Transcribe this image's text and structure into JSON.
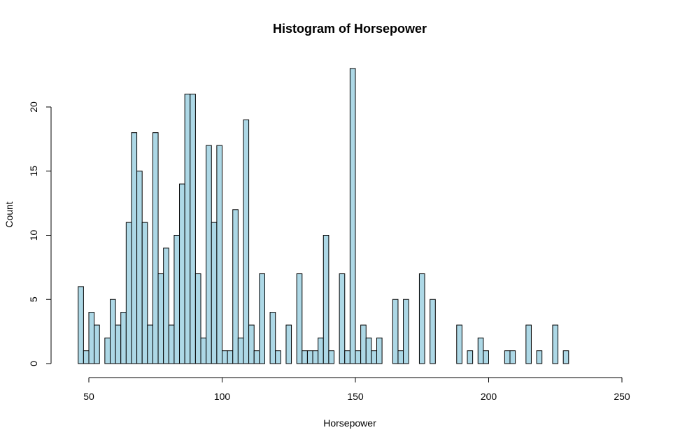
{
  "chart_data": {
    "type": "bar",
    "title": "Histogram of Horsepower",
    "xlabel": "Horsepower",
    "ylabel": "Count",
    "bin_width": 2,
    "bins": [
      {
        "x": 46,
        "count": 6
      },
      {
        "x": 48,
        "count": 1
      },
      {
        "x": 50,
        "count": 4
      },
      {
        "x": 52,
        "count": 3
      },
      {
        "x": 54,
        "count": 0
      },
      {
        "x": 56,
        "count": 2
      },
      {
        "x": 58,
        "count": 5
      },
      {
        "x": 60,
        "count": 3
      },
      {
        "x": 62,
        "count": 4
      },
      {
        "x": 64,
        "count": 11
      },
      {
        "x": 66,
        "count": 18
      },
      {
        "x": 68,
        "count": 15
      },
      {
        "x": 70,
        "count": 11
      },
      {
        "x": 72,
        "count": 3
      },
      {
        "x": 74,
        "count": 18
      },
      {
        "x": 76,
        "count": 7
      },
      {
        "x": 78,
        "count": 9
      },
      {
        "x": 80,
        "count": 3
      },
      {
        "x": 82,
        "count": 10
      },
      {
        "x": 84,
        "count": 14
      },
      {
        "x": 86,
        "count": 21
      },
      {
        "x": 88,
        "count": 21
      },
      {
        "x": 90,
        "count": 7
      },
      {
        "x": 92,
        "count": 2
      },
      {
        "x": 94,
        "count": 17
      },
      {
        "x": 96,
        "count": 11
      },
      {
        "x": 98,
        "count": 17
      },
      {
        "x": 100,
        "count": 1
      },
      {
        "x": 102,
        "count": 1
      },
      {
        "x": 104,
        "count": 12
      },
      {
        "x": 106,
        "count": 2
      },
      {
        "x": 108,
        "count": 19
      },
      {
        "x": 110,
        "count": 3
      },
      {
        "x": 112,
        "count": 1
      },
      {
        "x": 114,
        "count": 7
      },
      {
        "x": 116,
        "count": 0
      },
      {
        "x": 118,
        "count": 4
      },
      {
        "x": 120,
        "count": 1
      },
      {
        "x": 122,
        "count": 0
      },
      {
        "x": 124,
        "count": 3
      },
      {
        "x": 126,
        "count": 0
      },
      {
        "x": 128,
        "count": 7
      },
      {
        "x": 130,
        "count": 1
      },
      {
        "x": 132,
        "count": 1
      },
      {
        "x": 134,
        "count": 1
      },
      {
        "x": 136,
        "count": 2
      },
      {
        "x": 138,
        "count": 10
      },
      {
        "x": 140,
        "count": 1
      },
      {
        "x": 142,
        "count": 0
      },
      {
        "x": 144,
        "count": 7
      },
      {
        "x": 146,
        "count": 1
      },
      {
        "x": 148,
        "count": 23
      },
      {
        "x": 150,
        "count": 1
      },
      {
        "x": 152,
        "count": 3
      },
      {
        "x": 154,
        "count": 2
      },
      {
        "x": 156,
        "count": 1
      },
      {
        "x": 158,
        "count": 2
      },
      {
        "x": 160,
        "count": 0
      },
      {
        "x": 162,
        "count": 0
      },
      {
        "x": 164,
        "count": 5
      },
      {
        "x": 166,
        "count": 1
      },
      {
        "x": 168,
        "count": 5
      },
      {
        "x": 170,
        "count": 0
      },
      {
        "x": 172,
        "count": 0
      },
      {
        "x": 174,
        "count": 7
      },
      {
        "x": 176,
        "count": 0
      },
      {
        "x": 178,
        "count": 5
      },
      {
        "x": 180,
        "count": 0
      },
      {
        "x": 182,
        "count": 0
      },
      {
        "x": 184,
        "count": 0
      },
      {
        "x": 186,
        "count": 0
      },
      {
        "x": 188,
        "count": 3
      },
      {
        "x": 190,
        "count": 0
      },
      {
        "x": 192,
        "count": 1
      },
      {
        "x": 194,
        "count": 0
      },
      {
        "x": 196,
        "count": 2
      },
      {
        "x": 198,
        "count": 1
      },
      {
        "x": 200,
        "count": 0
      },
      {
        "x": 202,
        "count": 0
      },
      {
        "x": 204,
        "count": 0
      },
      {
        "x": 206,
        "count": 1
      },
      {
        "x": 208,
        "count": 1
      },
      {
        "x": 210,
        "count": 0
      },
      {
        "x": 212,
        "count": 0
      },
      {
        "x": 214,
        "count": 3
      },
      {
        "x": 216,
        "count": 0
      },
      {
        "x": 218,
        "count": 1
      },
      {
        "x": 220,
        "count": 0
      },
      {
        "x": 222,
        "count": 0
      },
      {
        "x": 224,
        "count": 3
      },
      {
        "x": 226,
        "count": 0
      },
      {
        "x": 228,
        "count": 1
      }
    ],
    "xlim": [
      40,
      250
    ],
    "ylim": [
      0,
      23
    ],
    "x_ticks": [
      "50",
      "100",
      "150",
      "200",
      "250"
    ],
    "x_tick_values": [
      50,
      100,
      150,
      200,
      250
    ],
    "y_ticks": [
      "0",
      "5",
      "10",
      "15",
      "20"
    ],
    "y_tick_values": [
      0,
      5,
      10,
      15,
      20
    ],
    "grid": false,
    "bar_color": "#add8e6",
    "border_color": "#000000"
  }
}
